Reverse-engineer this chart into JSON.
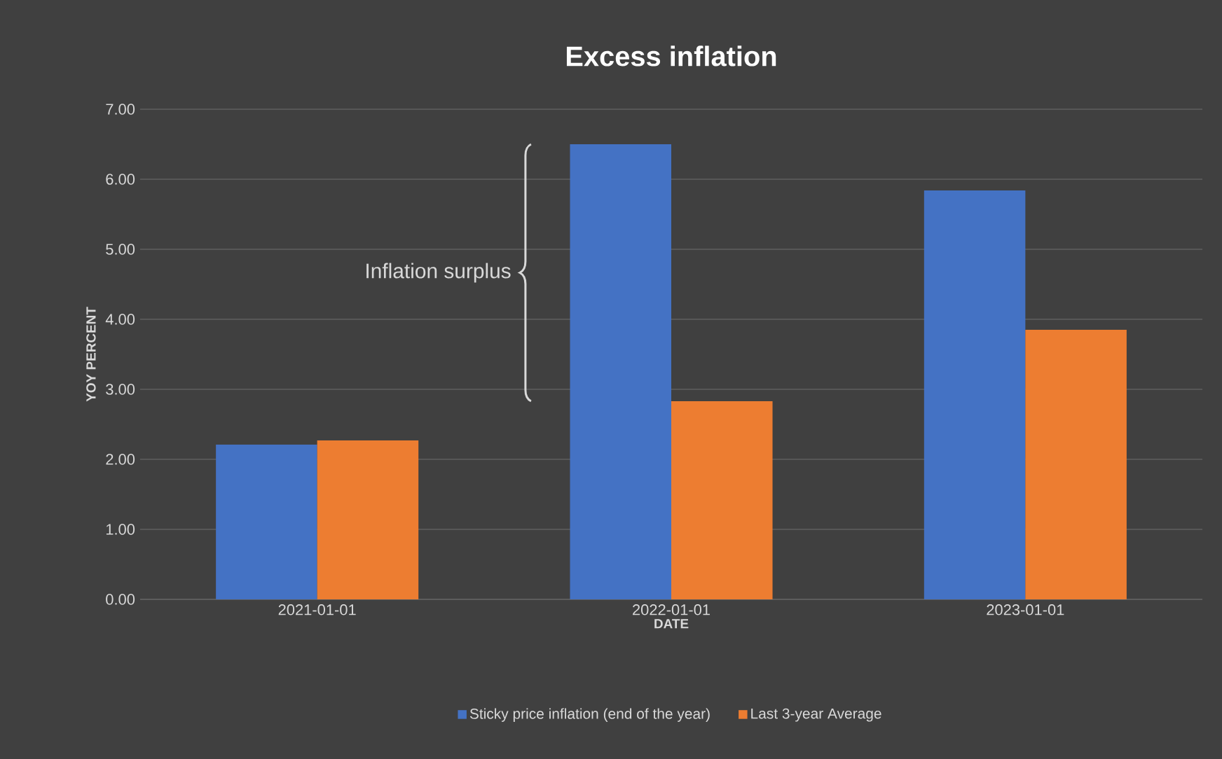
{
  "chart_data": {
    "type": "bar",
    "title": "Excess inflation",
    "xlabel": "DATE",
    "ylabel": "YOY PERCENT",
    "categories": [
      "2021-01-01",
      "2022-01-01",
      "2023-01-01"
    ],
    "series": [
      {
        "name": "Sticky price inflation (end of the year)",
        "color": "#4472c4",
        "values": [
          2.21,
          6.5,
          5.84
        ]
      },
      {
        "name": "Last 3-year Average",
        "color": "#ed7d31",
        "values": [
          2.27,
          2.83,
          3.85
        ]
      }
    ],
    "ylim": [
      0,
      7
    ],
    "yticks": [
      {
        "value": 0,
        "label": "0.00"
      },
      {
        "value": 1,
        "label": "1.00"
      },
      {
        "value": 2,
        "label": "2.00"
      },
      {
        "value": 3,
        "label": "3.00"
      },
      {
        "value": 4,
        "label": "4.00"
      },
      {
        "value": 5,
        "label": "5.00"
      },
      {
        "value": 6,
        "label": "6.00"
      },
      {
        "value": 7,
        "label": "7.00"
      }
    ],
    "annotations": [
      "Inflation surplus"
    ],
    "grid": "y",
    "legend": "bottom"
  }
}
